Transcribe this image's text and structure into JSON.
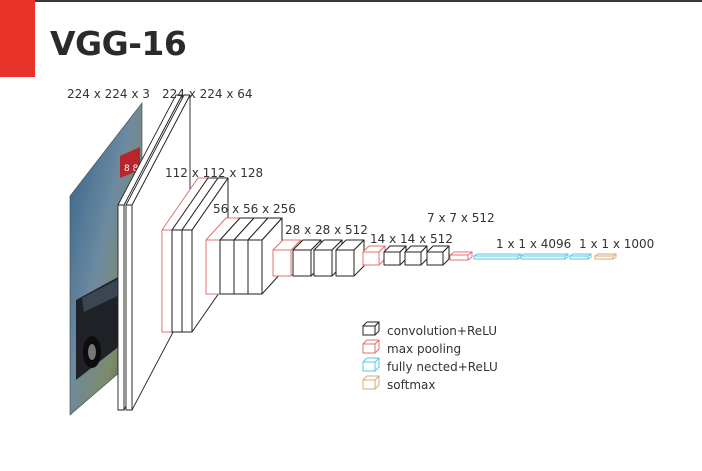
{
  "title": "VGG-16",
  "colors": {
    "accent": "#e8332a",
    "convolution": "#222222",
    "pooling": "#e07070",
    "fully_connected": "#58c4e6",
    "softmax": "#d9aa77"
  },
  "image_icon": "car-photo",
  "dimensions": [
    {
      "key": "input",
      "text": "224 x 224 x 3"
    },
    {
      "key": "conv1",
      "text": "224 x 224 x 64"
    },
    {
      "key": "conv2",
      "text": "112 x 112 x 128"
    },
    {
      "key": "conv3",
      "text": "56 x 56 x 256"
    },
    {
      "key": "conv4",
      "text": "28 x 28 x 512"
    },
    {
      "key": "conv5",
      "text": "14 x 14 x 512"
    },
    {
      "key": "pool5",
      "text": "7 x 7 x 512"
    },
    {
      "key": "fc",
      "text": "1 x 1 x 4096"
    },
    {
      "key": "out",
      "text": "1 x 1 x 1000"
    }
  ],
  "legend": [
    {
      "key": "convolution",
      "label": "convolution+ReLU"
    },
    {
      "key": "pooling",
      "label": "max pooling"
    },
    {
      "key": "fully_connected",
      "label": "fully nected+ReLU"
    },
    {
      "key": "softmax",
      "label": "softmax"
    }
  ]
}
